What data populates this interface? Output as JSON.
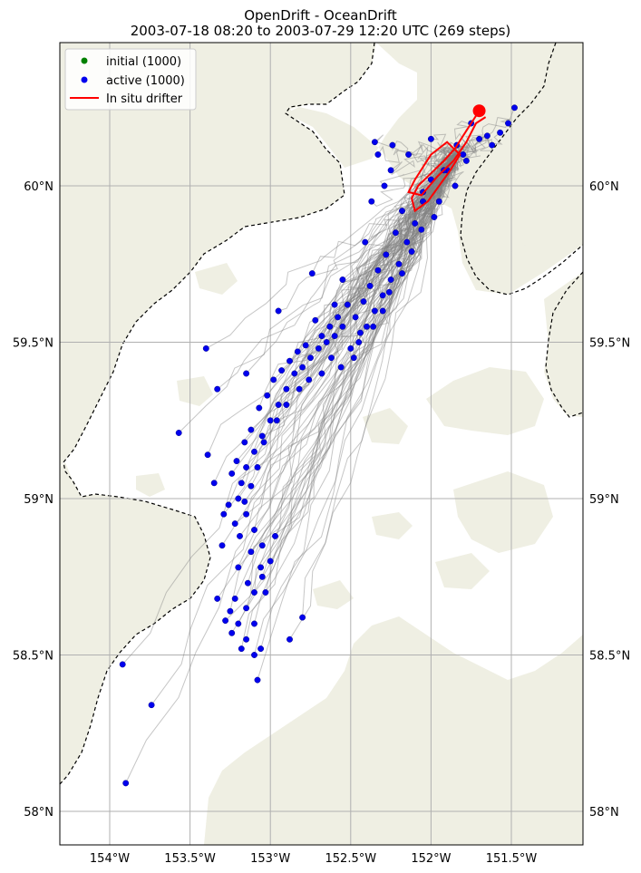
{
  "title": {
    "line1": "OpenDrift - OceanDrift",
    "line2": "2003-07-18 08:20 to 2003-07-29 12:20 UTC (269 steps)"
  },
  "colors": {
    "land": "#efefe3",
    "ocean": "#ffffff",
    "grid": "#b0b0b0",
    "trajectory": "#808080",
    "active": "#0000ee",
    "initial": "#008000",
    "drifter": "#ff0000",
    "coastline_boundary": "#000000"
  },
  "legend": {
    "placement": "top-left",
    "items": [
      {
        "label": "initial (1000)",
        "marker": "dot",
        "color": "#008000"
      },
      {
        "label": "active (1000)",
        "marker": "dot",
        "color": "#0000ee"
      },
      {
        "label": "In situ drifter",
        "marker": "line",
        "color": "#ff0000"
      }
    ]
  },
  "axes": {
    "x_ticks": [
      "154°W",
      "153.5°W",
      "153°W",
      "152.5°W",
      "152°W",
      "151.5°W"
    ],
    "y_ticks_left": [
      "60°N",
      "59.5°N",
      "59°N",
      "58.5°N",
      "58°N"
    ],
    "y_ticks_right": [
      "60°N",
      "59.5°N",
      "59°N",
      "58.5°N",
      "58°N"
    ]
  },
  "chart_data": {
    "type": "scatter",
    "title": "OpenDrift - OceanDrift",
    "subtitle": "2003-07-18 08:20 to 2003-07-29 12:20 UTC (269 steps)",
    "xlim": [
      -154.16,
      -150.53
    ],
    "ylim": [
      57.89,
      60.45
    ],
    "x_ticks": [
      -154,
      -153.5,
      -153,
      -152.5,
      -152,
      -151.5
    ],
    "y_ticks": [
      60,
      59.5,
      59,
      58.5,
      58
    ],
    "grid": true,
    "series": [
      {
        "name": "active (1000)",
        "marker": "dot",
        "points": [
          [
            -151.7,
            60.15
          ],
          [
            -151.57,
            60.17
          ],
          [
            -151.48,
            60.25
          ],
          [
            -151.62,
            60.13
          ],
          [
            -151.75,
            60.2
          ],
          [
            -151.8,
            60.1
          ],
          [
            -151.9,
            60.05
          ],
          [
            -152.0,
            60.02
          ],
          [
            -152.05,
            59.95
          ],
          [
            -152.1,
            59.88
          ],
          [
            -152.15,
            59.82
          ],
          [
            -152.2,
            59.75
          ],
          [
            -152.25,
            59.7
          ],
          [
            -152.3,
            59.65
          ],
          [
            -152.35,
            59.6
          ],
          [
            -152.4,
            59.55
          ],
          [
            -152.45,
            59.5
          ],
          [
            -152.5,
            59.48
          ],
          [
            -152.55,
            59.55
          ],
          [
            -152.6,
            59.52
          ],
          [
            -152.65,
            59.5
          ],
          [
            -152.7,
            59.48
          ],
          [
            -152.75,
            59.45
          ],
          [
            -152.8,
            59.42
          ],
          [
            -152.85,
            59.4
          ],
          [
            -152.9,
            59.35
          ],
          [
            -152.95,
            59.3
          ],
          [
            -153.0,
            59.25
          ],
          [
            -153.05,
            59.2
          ],
          [
            -153.1,
            59.15
          ],
          [
            -153.15,
            59.1
          ],
          [
            -153.18,
            59.05
          ],
          [
            -153.2,
            59.0
          ],
          [
            -153.15,
            58.95
          ],
          [
            -153.1,
            58.9
          ],
          [
            -153.05,
            58.85
          ],
          [
            -153.0,
            58.8
          ],
          [
            -153.05,
            58.75
          ],
          [
            -153.1,
            58.7
          ],
          [
            -153.15,
            58.65
          ],
          [
            -153.2,
            58.6
          ],
          [
            -153.15,
            58.55
          ],
          [
            -153.1,
            58.5
          ],
          [
            -153.08,
            58.42
          ],
          [
            -152.88,
            58.55
          ],
          [
            -152.8,
            58.62
          ],
          [
            -152.97,
            58.88
          ],
          [
            -153.25,
            58.64
          ],
          [
            -153.33,
            58.68
          ],
          [
            -153.92,
            58.47
          ],
          [
            -153.74,
            58.34
          ],
          [
            -153.9,
            58.09
          ],
          [
            -153.57,
            59.21
          ],
          [
            -153.39,
            59.14
          ],
          [
            -153.35,
            59.05
          ],
          [
            -153.29,
            58.95
          ],
          [
            -153.4,
            59.48
          ],
          [
            -153.33,
            59.35
          ],
          [
            -153.15,
            59.4
          ],
          [
            -152.95,
            59.6
          ],
          [
            -152.74,
            59.72
          ],
          [
            -152.6,
            59.62
          ],
          [
            -152.55,
            59.7
          ],
          [
            -152.41,
            59.82
          ],
          [
            -152.37,
            59.95
          ],
          [
            -152.29,
            60.0
          ],
          [
            -152.25,
            60.05
          ],
          [
            -152.33,
            60.1
          ],
          [
            -152.35,
            60.14
          ],
          [
            -152.24,
            60.13
          ],
          [
            -152.14,
            60.1
          ],
          [
            -152.0,
            60.15
          ],
          [
            -151.92,
            60.05
          ],
          [
            -151.85,
            60.0
          ],
          [
            -151.95,
            59.95
          ],
          [
            -152.05,
            59.98
          ],
          [
            -152.18,
            59.92
          ],
          [
            -152.22,
            59.85
          ],
          [
            -152.28,
            59.78
          ],
          [
            -152.33,
            59.73
          ],
          [
            -152.38,
            59.68
          ],
          [
            -152.42,
            59.63
          ],
          [
            -152.47,
            59.58
          ],
          [
            -152.52,
            59.62
          ],
          [
            -152.58,
            59.58
          ],
          [
            -152.63,
            59.55
          ],
          [
            -152.68,
            59.52
          ],
          [
            -152.72,
            59.57
          ],
          [
            -152.78,
            59.49
          ],
          [
            -152.83,
            59.47
          ],
          [
            -152.88,
            59.44
          ],
          [
            -152.93,
            59.41
          ],
          [
            -152.98,
            59.38
          ],
          [
            -153.02,
            59.33
          ],
          [
            -153.07,
            59.29
          ],
          [
            -153.12,
            59.22
          ],
          [
            -153.16,
            59.18
          ],
          [
            -153.21,
            59.12
          ],
          [
            -153.24,
            59.08
          ],
          [
            -153.26,
            58.98
          ],
          [
            -153.22,
            58.92
          ],
          [
            -153.19,
            58.88
          ],
          [
            -153.12,
            58.83
          ],
          [
            -153.06,
            58.78
          ],
          [
            -153.14,
            58.73
          ],
          [
            -153.22,
            58.68
          ],
          [
            -153.28,
            58.61
          ],
          [
            -153.24,
            58.57
          ],
          [
            -153.18,
            58.52
          ],
          [
            -153.06,
            58.52
          ],
          [
            -151.65,
            60.16
          ],
          [
            -151.52,
            60.2
          ],
          [
            -151.78,
            60.08
          ],
          [
            -151.84,
            60.13
          ],
          [
            -151.98,
            59.9
          ],
          [
            -152.06,
            59.86
          ],
          [
            -152.12,
            59.79
          ],
          [
            -152.18,
            59.72
          ],
          [
            -152.26,
            59.66
          ],
          [
            -152.3,
            59.6
          ],
          [
            -152.36,
            59.55
          ],
          [
            -152.44,
            59.53
          ],
          [
            -152.48,
            59.45
          ],
          [
            -152.56,
            59.42
          ],
          [
            -152.62,
            59.45
          ],
          [
            -152.68,
            59.4
          ],
          [
            -152.76,
            59.38
          ],
          [
            -152.82,
            59.35
          ],
          [
            -152.9,
            59.3
          ],
          [
            -152.96,
            59.25
          ],
          [
            -153.04,
            59.18
          ],
          [
            -153.08,
            59.1
          ],
          [
            -153.12,
            59.04
          ],
          [
            -153.16,
            58.99
          ],
          [
            -153.03,
            58.7
          ],
          [
            -153.1,
            58.6
          ],
          [
            -153.2,
            58.78
          ],
          [
            -153.3,
            58.85
          ]
        ]
      },
      {
        "name": "In situ drifter",
        "marker": "line",
        "points": [
          [
            -151.7,
            60.24
          ],
          [
            -151.75,
            60.2
          ],
          [
            -151.8,
            60.16
          ],
          [
            -151.85,
            60.12
          ],
          [
            -151.92,
            60.08
          ],
          [
            -152.0,
            60.04
          ],
          [
            -152.08,
            60.0
          ],
          [
            -152.12,
            59.96
          ],
          [
            -152.1,
            59.92
          ],
          [
            -152.02,
            59.95
          ],
          [
            -151.95,
            60.0
          ],
          [
            -151.88,
            60.05
          ],
          [
            -151.82,
            60.1
          ],
          [
            -151.9,
            60.14
          ],
          [
            -152.0,
            60.1
          ],
          [
            -152.1,
            60.02
          ],
          [
            -152.14,
            59.98
          ],
          [
            -152.06,
            59.97
          ],
          [
            -151.96,
            60.03
          ],
          [
            -151.86,
            60.08
          ],
          [
            -151.78,
            60.14
          ],
          [
            -151.72,
            60.2
          ],
          [
            -151.66,
            60.22
          ]
        ]
      }
    ],
    "drifter_end_marker": [
      -151.7,
      60.24
    ]
  }
}
